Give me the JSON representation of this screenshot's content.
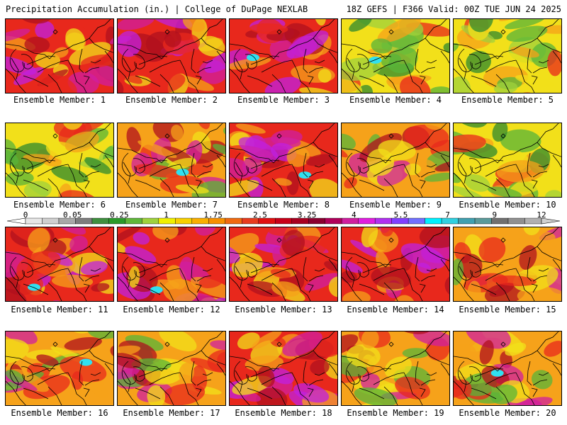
{
  "header": {
    "left": "Precipitation Accumulation (in.) | College of DuPage NEXLAB",
    "right": "18Z GEFS | F366 Valid: 00Z TUE JUN 24 2025"
  },
  "colorbar": {
    "labels": [
      "0",
      "0.05",
      "0.25",
      "1",
      "1.75",
      "2.5",
      "3.25",
      "4",
      "5.5",
      "7",
      "9",
      "12"
    ],
    "colors": [
      "#e6e6e6",
      "#cfcfcf",
      "#a8a8a8",
      "#7d7d7d",
      "#3f8f3f",
      "#2a9a2a",
      "#5fb73a",
      "#9fd23c",
      "#f0f000",
      "#f8d000",
      "#f9b000",
      "#f79000",
      "#f06a10",
      "#e83c1e",
      "#e01010",
      "#c80018",
      "#a80020",
      "#8a0030",
      "#b0005a",
      "#d01ea0",
      "#e01ee0",
      "#b030f0",
      "#8040ff",
      "#7070ff",
      "#00f0ff",
      "#30d0e0",
      "#40a0b0",
      "#5a9a9a",
      "#707070",
      "#909090",
      "#b0b0b0"
    ],
    "left_arrow_color": "#ffffff",
    "right_arrow_color": "#d0d0d0"
  },
  "panels": [
    {
      "label": "Ensemble Member: 1",
      "member": 1,
      "dominant": "red"
    },
    {
      "label": "Ensemble Member: 2",
      "member": 2,
      "dominant": "red"
    },
    {
      "label": "Ensemble Member: 3",
      "member": 3,
      "dominant": "red"
    },
    {
      "label": "Ensemble Member: 4",
      "member": 4,
      "dominant": "yellow"
    },
    {
      "label": "Ensemble Member: 5",
      "member": 5,
      "dominant": "yellow"
    },
    {
      "label": "Ensemble Member: 6",
      "member": 6,
      "dominant": "yellow"
    },
    {
      "label": "Ensemble Member: 7",
      "member": 7,
      "dominant": "orange"
    },
    {
      "label": "Ensemble Member: 8",
      "member": 8,
      "dominant": "red"
    },
    {
      "label": "Ensemble Member: 9",
      "member": 9,
      "dominant": "orange"
    },
    {
      "label": "Ensemble Member: 10",
      "member": 10,
      "dominant": "yellow"
    },
    {
      "label": "Ensemble Member: 11",
      "member": 11,
      "dominant": "red"
    },
    {
      "label": "Ensemble Member: 12",
      "member": 12,
      "dominant": "red"
    },
    {
      "label": "Ensemble Member: 13",
      "member": 13,
      "dominant": "red"
    },
    {
      "label": "Ensemble Member: 14",
      "member": 14,
      "dominant": "red"
    },
    {
      "label": "Ensemble Member: 15",
      "member": 15,
      "dominant": "orange"
    },
    {
      "label": "Ensemble Member: 16",
      "member": 16,
      "dominant": "orange"
    },
    {
      "label": "Ensemble Member: 17",
      "member": 17,
      "dominant": "orange"
    },
    {
      "label": "Ensemble Member: 18",
      "member": 18,
      "dominant": "red"
    },
    {
      "label": "Ensemble Member: 19",
      "member": 19,
      "dominant": "orange"
    },
    {
      "label": "Ensemble Member: 20",
      "member": 20,
      "dominant": "orange"
    }
  ]
}
